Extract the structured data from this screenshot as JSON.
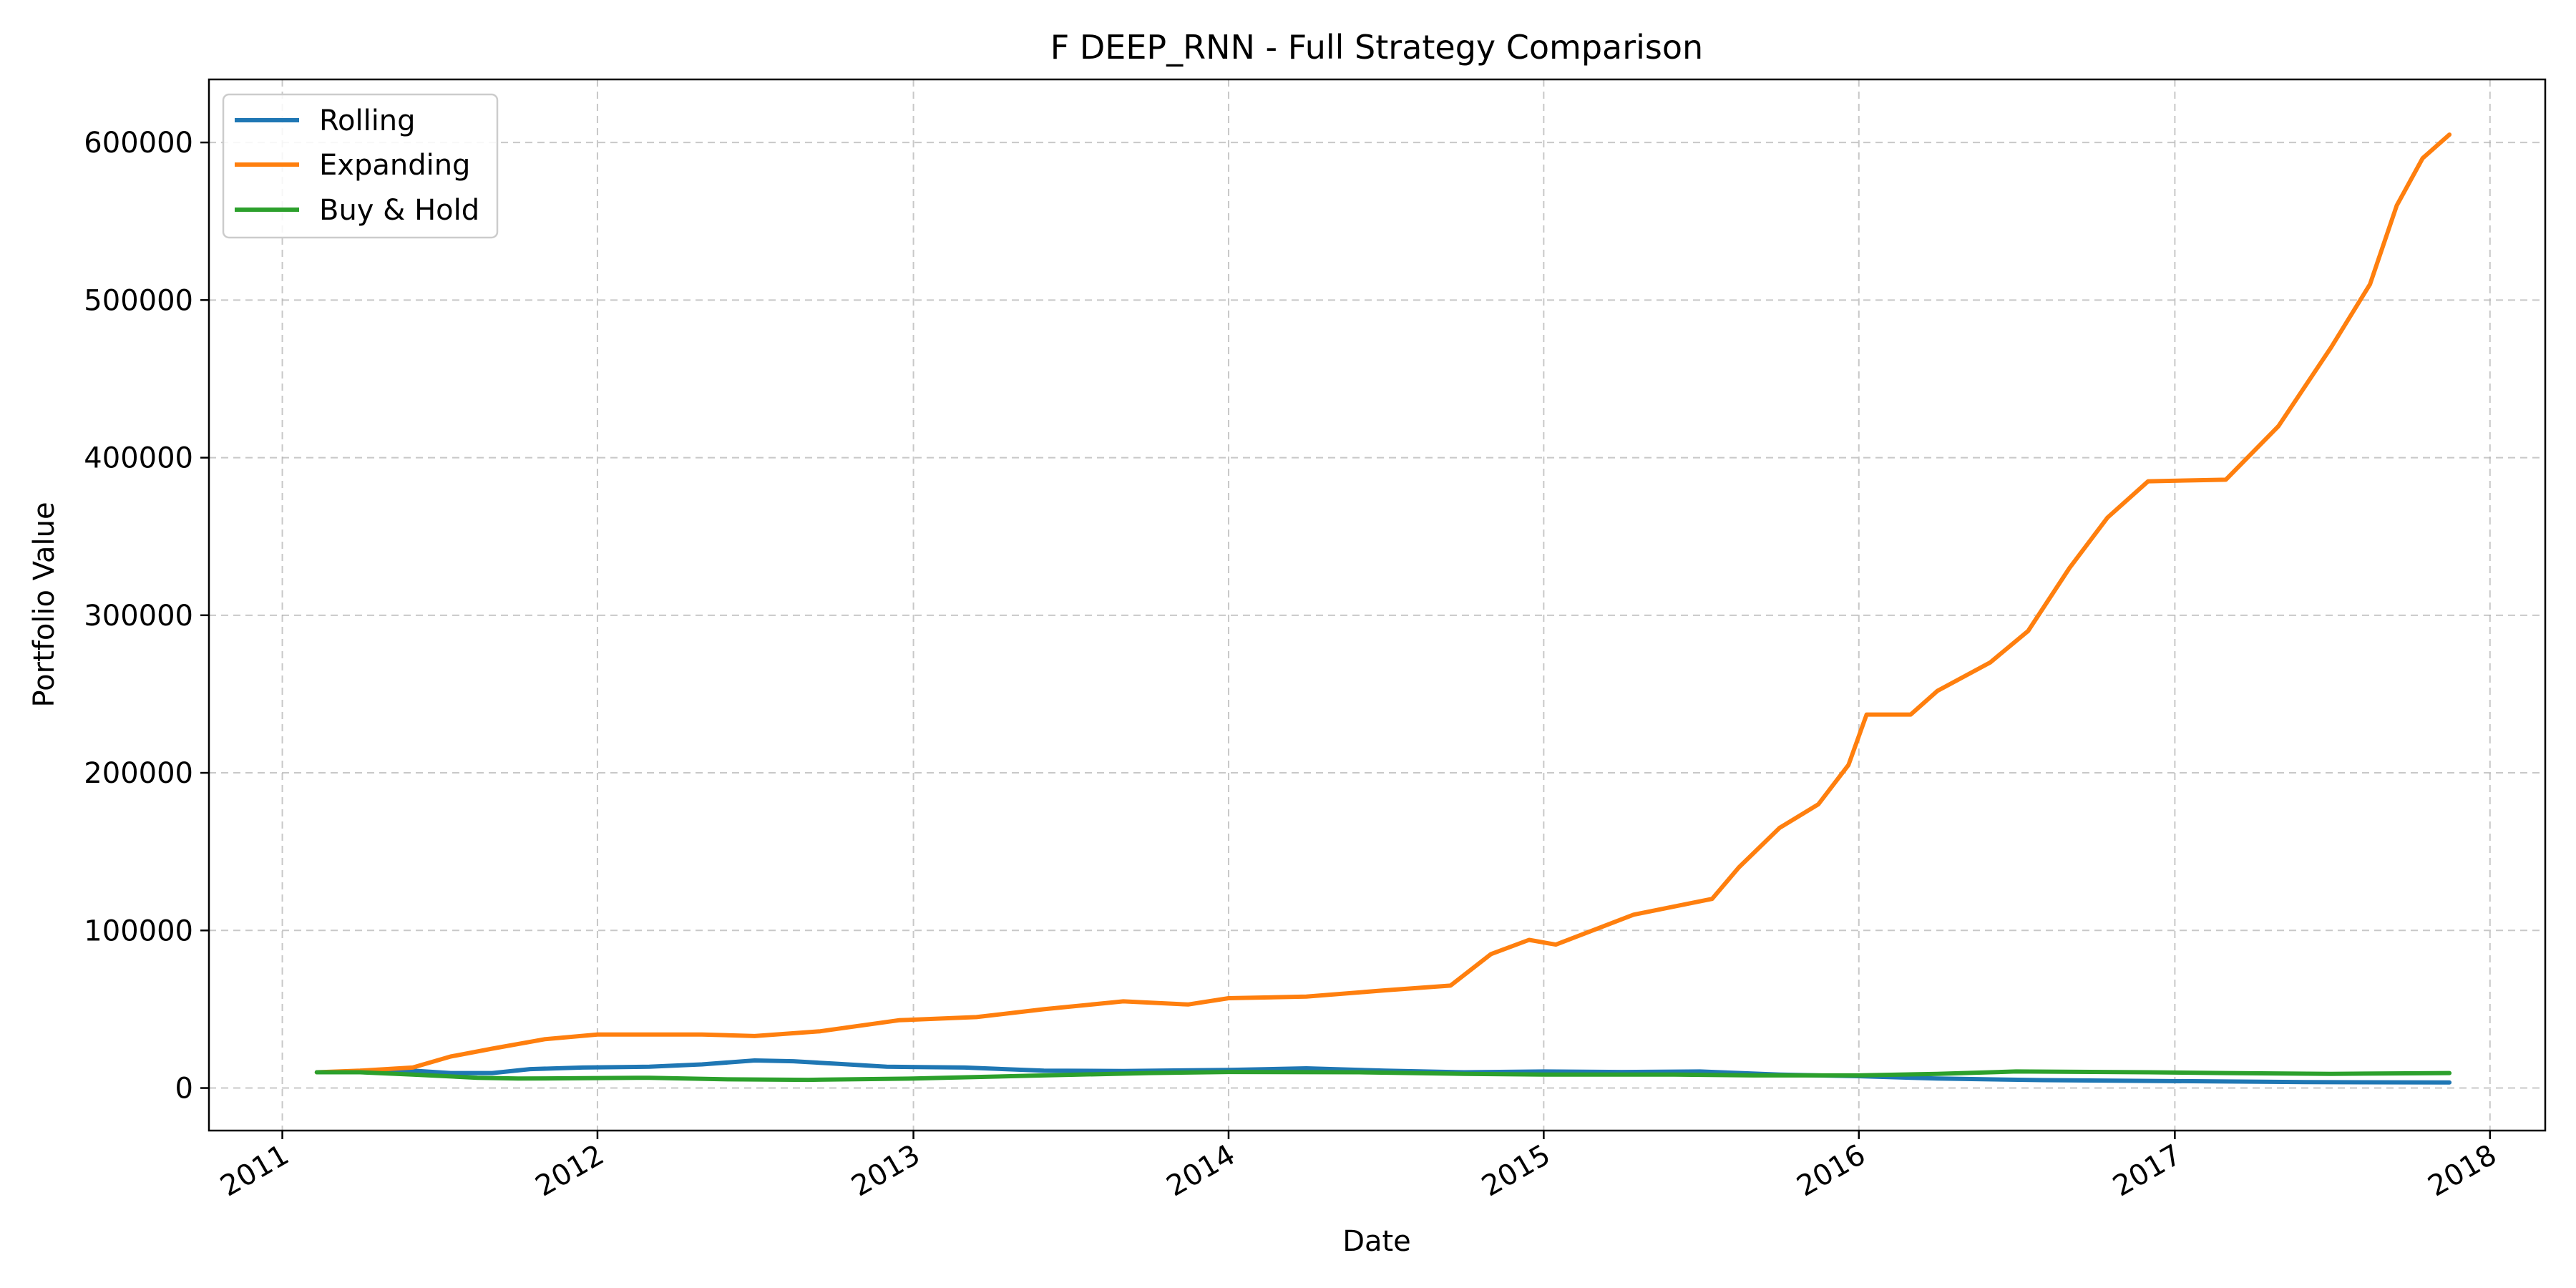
{
  "chart_data": {
    "type": "line",
    "title": "F DEEP_RNN - Full Strategy Comparison",
    "xlabel": "Date",
    "ylabel": "Portfolio Value",
    "x_type": "date",
    "xlim": [
      "2010-10-08",
      "2018-03-06"
    ],
    "ylim": [
      -27000,
      640000
    ],
    "x_ticks": [
      "2011",
      "2012",
      "2013",
      "2014",
      "2015",
      "2016",
      "2017",
      "2018"
    ],
    "y_ticks": [
      0,
      100000,
      200000,
      300000,
      400000,
      500000,
      600000
    ],
    "grid": true,
    "legend_position": "upper-left",
    "series": [
      {
        "name": "Rolling",
        "color": "#1f77b4",
        "points": [
          [
            "2011-02-10",
            10000
          ],
          [
            "2011-04-01",
            10200
          ],
          [
            "2011-06-01",
            11000
          ],
          [
            "2011-07-15",
            9500
          ],
          [
            "2011-09-01",
            9500
          ],
          [
            "2011-10-15",
            12000
          ],
          [
            "2011-12-15",
            13000
          ],
          [
            "2012-03-01",
            13500
          ],
          [
            "2012-05-01",
            15000
          ],
          [
            "2012-07-01",
            17500
          ],
          [
            "2012-08-15",
            17000
          ],
          [
            "2012-10-01",
            15500
          ],
          [
            "2012-12-01",
            13500
          ],
          [
            "2013-03-01",
            13000
          ],
          [
            "2013-06-01",
            11000
          ],
          [
            "2013-09-01",
            10800
          ],
          [
            "2014-01-01",
            11500
          ],
          [
            "2014-04-01",
            12500
          ],
          [
            "2014-07-01",
            11000
          ],
          [
            "2014-10-01",
            10000
          ],
          [
            "2015-01-01",
            10500
          ],
          [
            "2015-04-01",
            10200
          ],
          [
            "2015-07-01",
            10500
          ],
          [
            "2015-10-01",
            8500
          ],
          [
            "2016-01-01",
            7500
          ],
          [
            "2016-04-01",
            6000
          ],
          [
            "2016-08-01",
            5000
          ],
          [
            "2016-12-01",
            4500
          ],
          [
            "2017-06-01",
            3800
          ],
          [
            "2017-11-15",
            3500
          ]
        ]
      },
      {
        "name": "Expanding",
        "color": "#ff7f0e",
        "points": [
          [
            "2011-02-10",
            10000
          ],
          [
            "2011-04-01",
            11000
          ],
          [
            "2011-06-01",
            13000
          ],
          [
            "2011-07-15",
            20000
          ],
          [
            "2011-09-01",
            25000
          ],
          [
            "2011-11-01",
            31000
          ],
          [
            "2012-01-01",
            34000
          ],
          [
            "2012-05-01",
            34000
          ],
          [
            "2012-07-01",
            33000
          ],
          [
            "2012-09-15",
            36000
          ],
          [
            "2012-12-15",
            43000
          ],
          [
            "2013-03-15",
            45000
          ],
          [
            "2013-06-01",
            50000
          ],
          [
            "2013-09-01",
            55000
          ],
          [
            "2013-11-15",
            53000
          ],
          [
            "2014-01-01",
            57000
          ],
          [
            "2014-04-01",
            58000
          ],
          [
            "2014-07-01",
            62000
          ],
          [
            "2014-09-15",
            65000
          ],
          [
            "2014-11-01",
            85000
          ],
          [
            "2014-12-15",
            94000
          ],
          [
            "2015-01-15",
            91000
          ],
          [
            "2015-04-15",
            110000
          ],
          [
            "2015-07-15",
            120000
          ],
          [
            "2015-08-15",
            140000
          ],
          [
            "2015-10-01",
            165000
          ],
          [
            "2015-11-15",
            180000
          ],
          [
            "2015-12-20",
            205000
          ],
          [
            "2016-01-10",
            237000
          ],
          [
            "2016-03-01",
            237000
          ],
          [
            "2016-04-01",
            252000
          ],
          [
            "2016-06-01",
            270000
          ],
          [
            "2016-07-15",
            290000
          ],
          [
            "2016-09-01",
            330000
          ],
          [
            "2016-10-15",
            362000
          ],
          [
            "2016-12-01",
            385000
          ],
          [
            "2017-03-01",
            386000
          ],
          [
            "2017-05-01",
            420000
          ],
          [
            "2017-07-01",
            470000
          ],
          [
            "2017-08-15",
            510000
          ],
          [
            "2017-09-15",
            560000
          ],
          [
            "2017-10-15",
            590000
          ],
          [
            "2017-11-15",
            605000
          ]
        ]
      },
      {
        "name": "Buy & Hold",
        "color": "#2ca02c",
        "points": [
          [
            "2011-02-10",
            10000
          ],
          [
            "2011-04-01",
            10000
          ],
          [
            "2011-06-01",
            8500
          ],
          [
            "2011-08-15",
            6500
          ],
          [
            "2011-10-01",
            6000
          ],
          [
            "2012-03-01",
            6500
          ],
          [
            "2012-06-01",
            5500
          ],
          [
            "2012-09-01",
            5200
          ],
          [
            "2013-01-01",
            6000
          ],
          [
            "2013-06-01",
            8000
          ],
          [
            "2013-10-01",
            9500
          ],
          [
            "2014-01-01",
            10200
          ],
          [
            "2014-06-01",
            10000
          ],
          [
            "2014-10-01",
            9000
          ],
          [
            "2015-01-01",
            8500
          ],
          [
            "2015-06-01",
            8500
          ],
          [
            "2015-09-01",
            8000
          ],
          [
            "2016-01-01",
            8000
          ],
          [
            "2016-04-01",
            9000
          ],
          [
            "2016-07-01",
            10500
          ],
          [
            "2016-12-01",
            10000
          ],
          [
            "2017-03-01",
            9500
          ],
          [
            "2017-07-01",
            9000
          ],
          [
            "2017-11-15",
            9500
          ]
        ]
      }
    ]
  }
}
